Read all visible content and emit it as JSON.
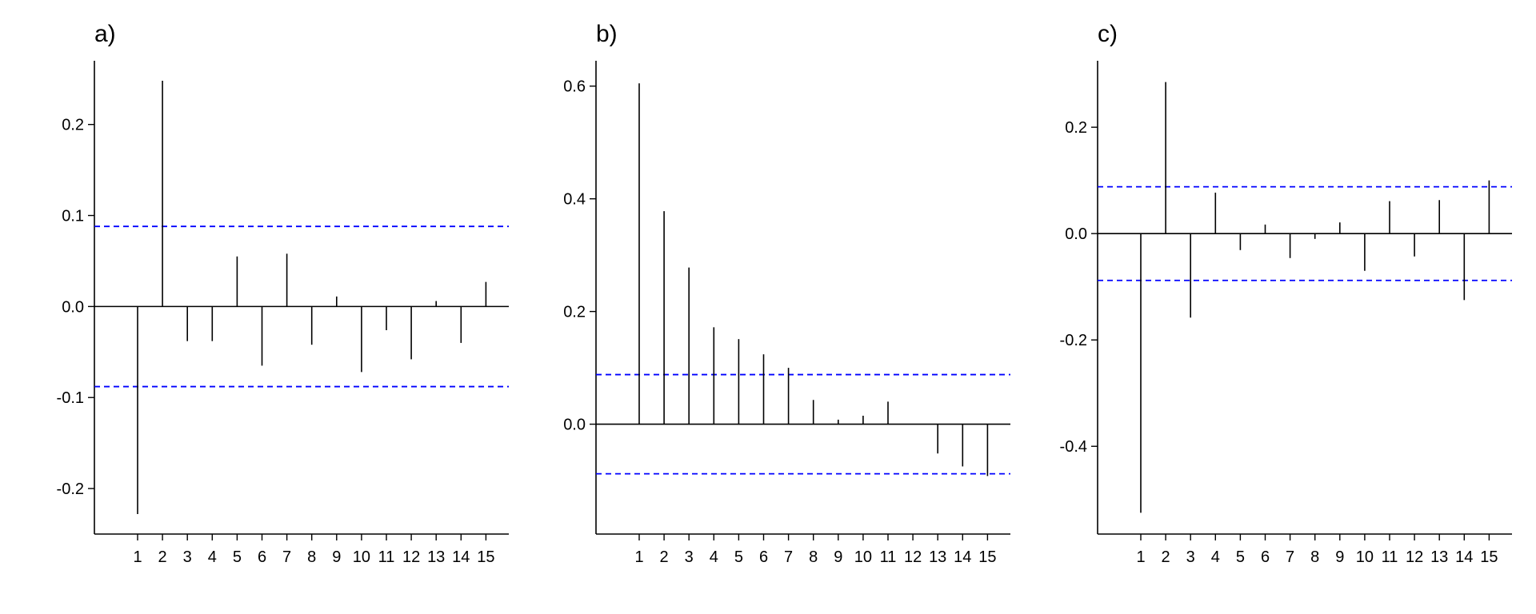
{
  "chart_data": [
    {
      "type": "bar",
      "title": "a)",
      "xlabel": "",
      "ylabel": "",
      "categories": [
        "1",
        "2",
        "3",
        "4",
        "5",
        "6",
        "7",
        "8",
        "9",
        "10",
        "11",
        "12",
        "13",
        "14",
        "15"
      ],
      "x": [
        1,
        2,
        3,
        4,
        5,
        6,
        7,
        8,
        9,
        10,
        11,
        12,
        13,
        14,
        15
      ],
      "values": [
        -0.228,
        0.248,
        -0.038,
        -0.038,
        0.055,
        -0.065,
        0.058,
        -0.042,
        0.011,
        -0.072,
        -0.026,
        -0.058,
        0.006,
        -0.04,
        0.027
      ],
      "ylim": [
        -0.25,
        0.27
      ],
      "yticks": [
        -0.2,
        -0.1,
        0.0,
        0.1,
        0.2
      ],
      "ytick_labels": [
        "-0.2",
        "-0.1",
        "0.0",
        "0.1",
        "0.2"
      ],
      "confidence_bounds": [
        0.088,
        -0.088
      ],
      "colors": {
        "bars": "#000000",
        "bounds": "#0000ff",
        "axis": "#000000"
      }
    },
    {
      "type": "bar",
      "title": "b)",
      "xlabel": "",
      "ylabel": "",
      "categories": [
        "1",
        "2",
        "3",
        "4",
        "5",
        "6",
        "7",
        "8",
        "9",
        "10",
        "11",
        "12",
        "13",
        "14",
        "15"
      ],
      "x": [
        1,
        2,
        3,
        4,
        5,
        6,
        7,
        8,
        9,
        10,
        11,
        12,
        13,
        14,
        15
      ],
      "values": [
        0.605,
        0.378,
        0.278,
        0.172,
        0.151,
        0.124,
        0.1,
        0.043,
        0.008,
        0.015,
        0.04,
        0.0,
        -0.052,
        -0.075,
        -0.092
      ],
      "ylim": [
        -0.195,
        0.645
      ],
      "yticks": [
        0.0,
        0.2,
        0.4,
        0.6
      ],
      "ytick_labels": [
        "0.0",
        "0.2",
        "0.4",
        "0.6"
      ],
      "confidence_bounds": [
        0.088,
        -0.088
      ],
      "colors": {
        "bars": "#000000",
        "bounds": "#0000ff",
        "axis": "#000000"
      }
    },
    {
      "type": "bar",
      "title": "c)",
      "xlabel": "",
      "ylabel": "",
      "categories": [
        "1",
        "2",
        "3",
        "4",
        "5",
        "6",
        "7",
        "8",
        "9",
        "10",
        "11",
        "12",
        "13",
        "14",
        "15"
      ],
      "x": [
        1,
        2,
        3,
        4,
        5,
        6,
        7,
        8,
        9,
        10,
        11,
        12,
        13,
        14,
        15
      ],
      "values": [
        -0.525,
        0.285,
        -0.158,
        0.077,
        -0.031,
        0.017,
        -0.046,
        -0.01,
        0.021,
        -0.07,
        0.061,
        -0.043,
        0.063,
        -0.125,
        0.1
      ],
      "ylim": [
        -0.565,
        0.325
      ],
      "yticks": [
        -0.4,
        -0.2,
        0.0,
        0.2
      ],
      "ytick_labels": [
        "-0.4",
        "-0.2",
        "0.0",
        "0.2"
      ],
      "confidence_bounds": [
        0.088,
        -0.088
      ],
      "colors": {
        "bars": "#000000",
        "bounds": "#0000ff",
        "axis": "#000000"
      }
    }
  ]
}
